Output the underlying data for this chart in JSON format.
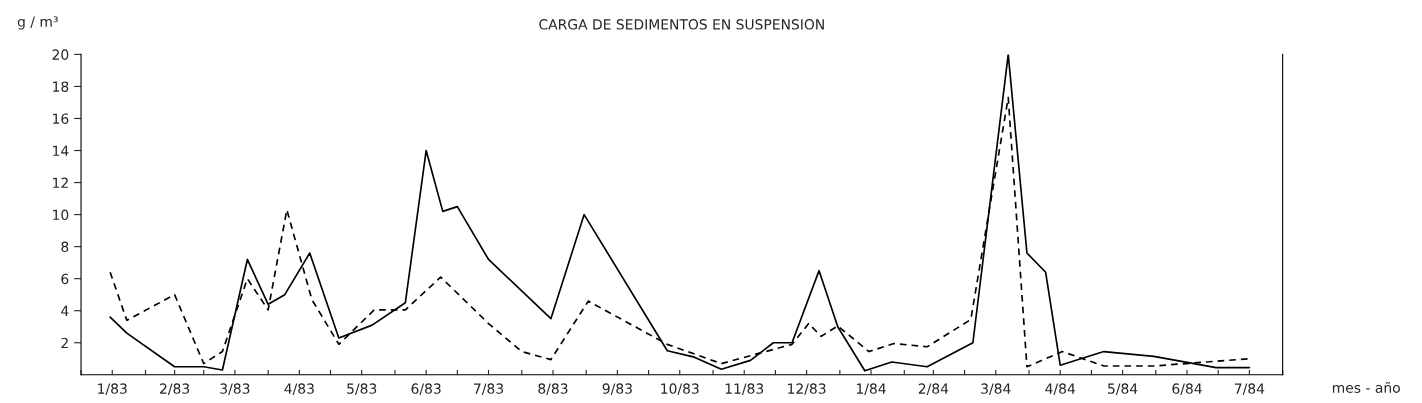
{
  "chart_data": {
    "type": "line",
    "title": "CARGA DE SEDIMENTOS EN SUSPENSION",
    "ylabel": "g / m³",
    "xlabel": "mes - año",
    "xlim": [
      "1983-01-01",
      "1984-08-01"
    ],
    "xticks": [
      {
        "value": "1983-01-01",
        "label": null
      },
      {
        "value": "1983-01-16",
        "label": "1/83"
      },
      {
        "value": "1983-02-01",
        "label": null
      },
      {
        "value": "1983-02-15",
        "label": "2/83"
      },
      {
        "value": "1983-03-01",
        "label": null
      },
      {
        "value": "1983-03-16",
        "label": "3/83"
      },
      {
        "value": "1983-04-01",
        "label": null
      },
      {
        "value": "1983-04-16",
        "label": "4/83"
      },
      {
        "value": "1983-05-01",
        "label": null
      },
      {
        "value": "1983-05-16",
        "label": "5/83"
      },
      {
        "value": "1983-06-01",
        "label": null
      },
      {
        "value": "1983-06-16",
        "label": "6/83"
      },
      {
        "value": "1983-07-01",
        "label": null
      },
      {
        "value": "1983-07-16",
        "label": "7/83"
      },
      {
        "value": "1983-08-01",
        "label": null
      },
      {
        "value": "1983-08-16",
        "label": "8/83"
      },
      {
        "value": "1983-09-01",
        "label": null
      },
      {
        "value": "1983-09-16",
        "label": "9/83"
      },
      {
        "value": "1983-10-01",
        "label": null
      },
      {
        "value": "1983-10-16",
        "label": "10/83"
      },
      {
        "value": "1983-11-01",
        "label": null
      },
      {
        "value": "1983-11-16",
        "label": "11/83"
      },
      {
        "value": "1983-12-01",
        "label": null
      },
      {
        "value": "1983-12-16",
        "label": "12/83"
      },
      {
        "value": "1984-01-01",
        "label": null
      },
      {
        "value": "1984-01-16",
        "label": "1/84"
      },
      {
        "value": "1984-02-01",
        "label": null
      },
      {
        "value": "1984-02-15",
        "label": "2/84"
      },
      {
        "value": "1984-03-01",
        "label": null
      },
      {
        "value": "1984-03-16",
        "label": "3/84"
      },
      {
        "value": "1984-04-01",
        "label": null
      },
      {
        "value": "1984-04-16",
        "label": "4/84"
      },
      {
        "value": "1984-05-01",
        "label": null
      },
      {
        "value": "1984-05-16",
        "label": "5/84"
      },
      {
        "value": "1984-06-01",
        "label": null
      },
      {
        "value": "1984-06-16",
        "label": "6/84"
      },
      {
        "value": "1984-07-01",
        "label": null
      },
      {
        "value": "1984-07-16",
        "label": "7/84"
      },
      {
        "value": "1984-08-01",
        "label": null
      }
    ],
    "ylim": [
      0,
      20
    ],
    "yticks": [
      2,
      4,
      6,
      8,
      10,
      12,
      14,
      16,
      18,
      20
    ],
    "series": [
      {
        "color": "#000000",
        "line_style": "solid",
        "x": [
          "1983-01-15",
          "1983-01-23",
          "1983-02-15",
          "1983-03-01",
          "1983-03-10",
          "1983-03-22",
          "1983-04-01",
          "1983-04-09",
          "1983-04-21",
          "1983-05-05",
          "1983-05-21",
          "1983-06-06",
          "1983-06-16",
          "1983-06-24",
          "1983-07-01",
          "1983-07-16",
          "1983-08-15",
          "1983-08-31",
          "1983-10-10",
          "1983-10-23",
          "1983-11-05",
          "1983-11-19",
          "1983-11-30",
          "1983-12-09",
          "1983-12-22",
          "1983-12-31",
          "1984-01-13",
          "1984-01-26",
          "1984-02-12",
          "1984-03-05",
          "1984-03-22",
          "1984-03-31",
          "1984-04-09",
          "1984-04-16",
          "1984-05-07",
          "1984-05-31",
          "1984-06-30",
          "1984-07-16"
        ],
        "values": [
          3.6,
          2.6,
          0.5,
          0.5,
          0.3,
          7.2,
          4.4,
          5.0,
          7.6,
          2.3,
          3.1,
          4.5,
          14.0,
          10.2,
          10.5,
          7.2,
          3.5,
          10.0,
          1.5,
          1.1,
          0.35,
          0.9,
          2.0,
          2.0,
          6.5,
          3.0,
          0.25,
          0.8,
          0.5,
          2.0,
          20.0,
          7.6,
          6.4,
          0.6,
          1.45,
          1.15,
          0.45,
          0.45
        ]
      },
      {
        "color": "#000000",
        "line_style": "dashed",
        "x": [
          "1983-01-15",
          "1983-01-23",
          "1983-02-15",
          "1983-03-01",
          "1983-03-10",
          "1983-03-22",
          "1983-04-01",
          "1983-04-10",
          "1983-04-22",
          "1983-05-05",
          "1983-05-22",
          "1983-06-06",
          "1983-06-23",
          "1983-07-16",
          "1983-08-01",
          "1983-08-15",
          "1983-09-02",
          "1983-10-10",
          "1983-11-05",
          "1983-12-09",
          "1983-12-17",
          "1983-12-23",
          "1983-12-31",
          "1984-01-15",
          "1984-01-27",
          "1984-02-12",
          "1984-03-04",
          "1984-03-22",
          "1984-03-31",
          "1984-04-17",
          "1984-05-07",
          "1984-05-31",
          "1984-07-16"
        ],
        "values": [
          6.4,
          3.4,
          5.0,
          0.7,
          1.45,
          6.0,
          4.05,
          10.3,
          4.7,
          1.9,
          4.05,
          4.05,
          6.1,
          3.2,
          1.45,
          0.95,
          4.6,
          1.9,
          0.7,
          1.9,
          3.2,
          2.4,
          3.05,
          1.45,
          1.95,
          1.75,
          3.45,
          17.3,
          0.5,
          1.45,
          0.55,
          0.55,
          1.0
        ]
      }
    ]
  }
}
